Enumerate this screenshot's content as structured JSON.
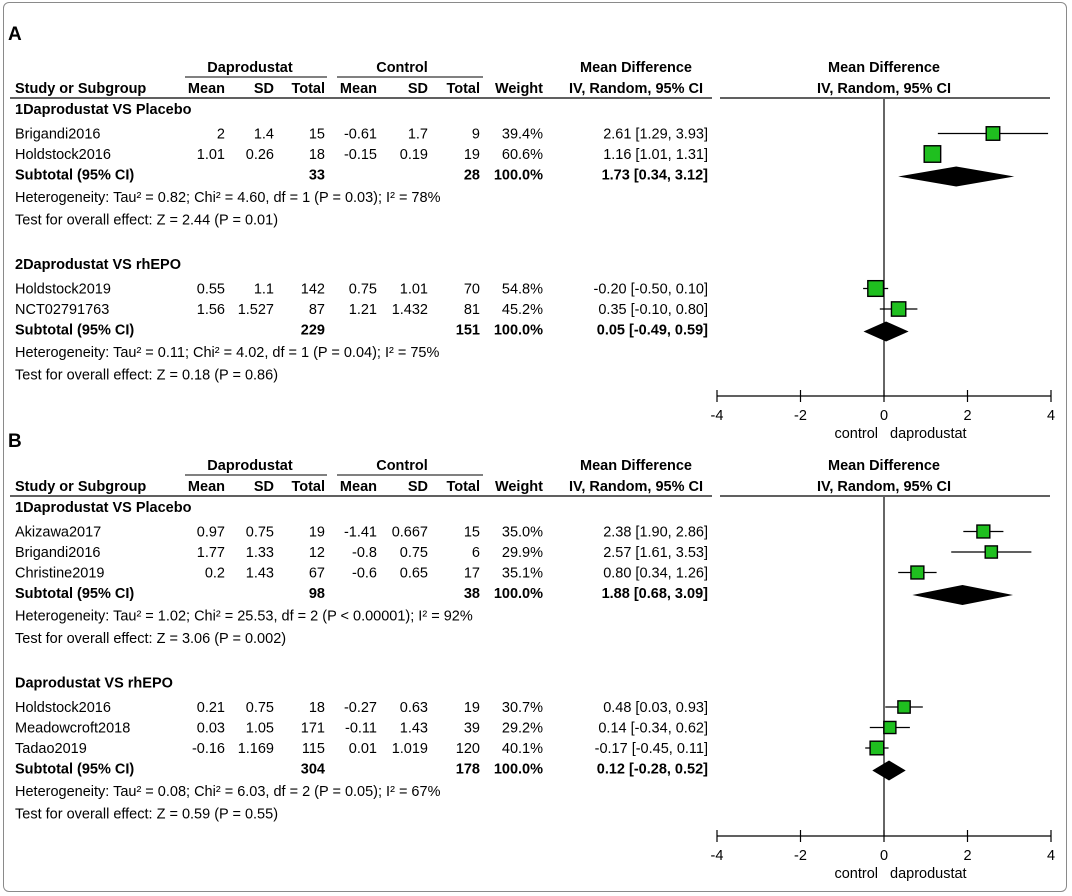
{
  "colors": {
    "marker": "#1fbf1f",
    "marker_stroke": "#000000",
    "diamond": "#000000",
    "frame": "#8a8a8a"
  },
  "chart_data": [
    {
      "type": "forest",
      "panel_label": "A",
      "headers": {
        "study": "Study or Subgroup",
        "group1": "Daprodustat",
        "group2": "Control",
        "mean": "Mean",
        "sd": "SD",
        "total": "Total",
        "weight": "Weight",
        "md_title": "Mean Difference",
        "md_sub": "IV, Random, 95% CI"
      },
      "plot_title": "Mean Difference",
      "plot_subtitle": "IV, Random, 95% CI",
      "xlim": [
        -4,
        4
      ],
      "ticks": [
        "-4",
        "-2",
        "0",
        "2",
        "4"
      ],
      "favours_left": "control",
      "favours_right": "daprodustat",
      "subgroups": [
        {
          "name": "1Daprodustat VS Placebo",
          "studies": [
            {
              "study": "Brigandi2016",
              "mean1": "2",
              "sd1": "1.4",
              "n1": "15",
              "mean2": "-0.61",
              "sd2": "1.7",
              "n2": "9",
              "weight": "39.4%",
              "ci_text": "2.61 [1.29, 3.93]",
              "est": 2.61,
              "lo": 1.29,
              "hi": 3.93,
              "w": 39.4
            },
            {
              "study": "Holdstock2016",
              "mean1": "1.01",
              "sd1": "0.26",
              "n1": "18",
              "mean2": "-0.15",
              "sd2": "0.19",
              "n2": "19",
              "weight": "60.6%",
              "ci_text": "1.16 [1.01, 1.31]",
              "est": 1.16,
              "lo": 1.01,
              "hi": 1.31,
              "w": 60.6
            }
          ],
          "subtotal": {
            "label": "Subtotal (95% CI)",
            "n1": "33",
            "n2": "28",
            "weight": "100.0%",
            "ci_text": "1.73 [0.34, 3.12]",
            "est": 1.73,
            "lo": 0.34,
            "hi": 3.12
          },
          "heterogeneity": "Heterogeneity: Tau² = 0.82; Chi² = 4.60, df = 1 (P = 0.03); I² = 78%",
          "overall": "Test for overall effect: Z = 2.44 (P = 0.01)"
        },
        {
          "name": "2Daprodustat VS rhEPO",
          "studies": [
            {
              "study": "Holdstock2019",
              "mean1": "0.55",
              "sd1": "1.1",
              "n1": "142",
              "mean2": "0.75",
              "sd2": "1.01",
              "n2": "70",
              "weight": "54.8%",
              "ci_text": "-0.20 [-0.50, 0.10]",
              "est": -0.2,
              "lo": -0.5,
              "hi": 0.1,
              "w": 54.8
            },
            {
              "study": "NCT02791763",
              "mean1": "1.56",
              "sd1": "1.527",
              "n1": "87",
              "mean2": "1.21",
              "sd2": "1.432",
              "n2": "81",
              "weight": "45.2%",
              "ci_text": "0.35 [-0.10, 0.80]",
              "est": 0.35,
              "lo": -0.1,
              "hi": 0.8,
              "w": 45.2
            }
          ],
          "subtotal": {
            "label": "Subtotal (95% CI)",
            "n1": "229",
            "n2": "151",
            "weight": "100.0%",
            "ci_text": "0.05 [-0.49, 0.59]",
            "est": 0.05,
            "lo": -0.49,
            "hi": 0.59
          },
          "heterogeneity": "Heterogeneity: Tau² = 0.11; Chi² = 4.02, df = 1 (P = 0.04); I² = 75%",
          "overall": "Test for overall effect: Z = 0.18 (P = 0.86)"
        }
      ]
    },
    {
      "type": "forest",
      "panel_label": "B",
      "headers": {
        "study": "Study or Subgroup",
        "group1": "Daprodustat",
        "group2": "Control",
        "mean": "Mean",
        "sd": "SD",
        "total": "Total",
        "weight": "Weight",
        "md_title": "Mean Difference",
        "md_sub": "IV, Random, 95% CI"
      },
      "plot_title": "Mean Difference",
      "plot_subtitle": "IV, Random, 95% CI",
      "xlim": [
        -4,
        4
      ],
      "ticks": [
        "-4",
        "-2",
        "0",
        "2",
        "4"
      ],
      "favours_left": "control",
      "favours_right": "daprodustat",
      "subgroups": [
        {
          "name": "1Daprodustat VS Placebo",
          "studies": [
            {
              "study": "Akizawa2017",
              "mean1": "0.97",
              "sd1": "0.75",
              "n1": "19",
              "mean2": "-1.41",
              "sd2": "0.667",
              "n2": "15",
              "weight": "35.0%",
              "ci_text": "2.38 [1.90, 2.86]",
              "est": 2.38,
              "lo": 1.9,
              "hi": 2.86,
              "w": 35.0
            },
            {
              "study": "Brigandi2016",
              "mean1": "1.77",
              "sd1": "1.33",
              "n1": "12",
              "mean2": "-0.8",
              "sd2": "0.75",
              "n2": "6",
              "weight": "29.9%",
              "ci_text": "2.57 [1.61, 3.53]",
              "est": 2.57,
              "lo": 1.61,
              "hi": 3.53,
              "w": 29.9
            },
            {
              "study": "Christine2019",
              "mean1": "0.2",
              "sd1": "1.43",
              "n1": "67",
              "mean2": "-0.6",
              "sd2": "0.65",
              "n2": "17",
              "weight": "35.1%",
              "ci_text": "0.80 [0.34, 1.26]",
              "est": 0.8,
              "lo": 0.34,
              "hi": 1.26,
              "w": 35.1
            }
          ],
          "subtotal": {
            "label": "Subtotal (95% CI)",
            "n1": "98",
            "n2": "38",
            "weight": "100.0%",
            "ci_text": "1.88 [0.68, 3.09]",
            "est": 1.88,
            "lo": 0.68,
            "hi": 3.09
          },
          "heterogeneity": "Heterogeneity: Tau² = 1.02; Chi² = 25.53, df = 2 (P < 0.00001); I² = 92%",
          "overall": "Test for overall effect: Z = 3.06 (P = 0.002)"
        },
        {
          "name": "Daprodustat VS rhEPO",
          "studies": [
            {
              "study": "Holdstock2016",
              "mean1": "0.21",
              "sd1": "0.75",
              "n1": "18",
              "mean2": "-0.27",
              "sd2": "0.63",
              "n2": "19",
              "weight": "30.7%",
              "ci_text": "0.48 [0.03, 0.93]",
              "est": 0.48,
              "lo": 0.03,
              "hi": 0.93,
              "w": 30.7
            },
            {
              "study": "Meadowcroft2018",
              "mean1": "0.03",
              "sd1": "1.05",
              "n1": "171",
              "mean2": "-0.11",
              "sd2": "1.43",
              "n2": "39",
              "weight": "29.2%",
              "ci_text": "0.14 [-0.34, 0.62]",
              "est": 0.14,
              "lo": -0.34,
              "hi": 0.62,
              "w": 29.2
            },
            {
              "study": "Tadao2019",
              "mean1": "-0.16",
              "sd1": "1.169",
              "n1": "115",
              "mean2": "0.01",
              "sd2": "1.019",
              "n2": "120",
              "weight": "40.1%",
              "ci_text": "-0.17 [-0.45, 0.11]",
              "est": -0.17,
              "lo": -0.45,
              "hi": 0.11,
              "w": 40.1
            }
          ],
          "subtotal": {
            "label": "Subtotal (95% CI)",
            "n1": "304",
            "n2": "178",
            "weight": "100.0%",
            "ci_text": "0.12 [-0.28, 0.52]",
            "est": 0.12,
            "lo": -0.28,
            "hi": 0.52
          },
          "heterogeneity": "Heterogeneity: Tau² = 0.08; Chi² = 6.03, df = 2 (P = 0.05); I² = 67%",
          "overall": "Test for overall effect: Z = 0.59 (P = 0.55)"
        }
      ]
    }
  ]
}
